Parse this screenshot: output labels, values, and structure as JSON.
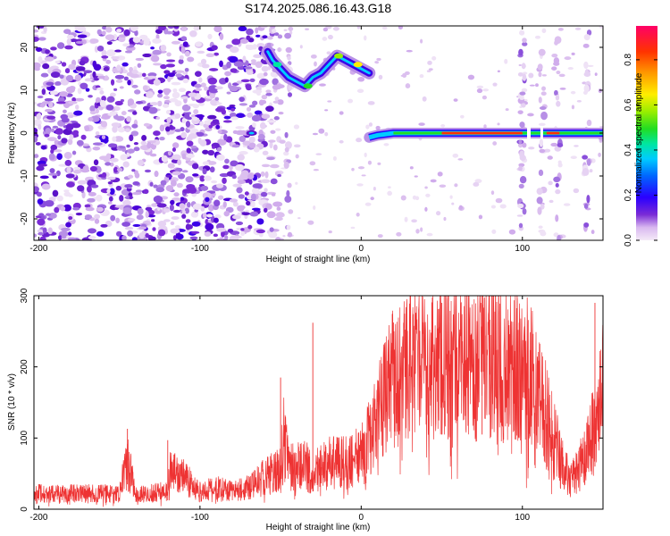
{
  "title": "S174.2025.086.16.43.G18",
  "chart_data": [
    {
      "type": "heatmap",
      "xlabel": "Height of straight line (km)",
      "ylabel": "Frequency (Hz)",
      "xlim": [
        -203,
        150
      ],
      "ylim": [
        -25,
        25
      ],
      "xticks": [
        -200,
        -100,
        0,
        100
      ],
      "yticks": [
        -20,
        -10,
        0,
        10,
        20
      ],
      "colorbar": {
        "label": "Normalized spectral amplitude",
        "ticks": [
          0.0,
          0.2,
          0.4,
          0.6,
          0.8
        ],
        "range": [
          0,
          0.95
        ],
        "colormap": [
          "#f4eaf7",
          "#d9b8f0",
          "#7a2bd6",
          "#2a00ff",
          "#0066ff",
          "#00ccff",
          "#00e6a0",
          "#22dd22",
          "#99ee00",
          "#ffee00",
          "#ff9900",
          "#ff3300",
          "#ff0066"
        ]
      },
      "features": {
        "noise_region_x": [
          -203,
          -50
        ],
        "upper_track": [
          [
            -58,
            19
          ],
          [
            -55,
            17
          ],
          [
            -50,
            15
          ],
          [
            -45,
            13
          ],
          [
            -40,
            12
          ],
          [
            -35,
            11
          ],
          [
            -30,
            13
          ],
          [
            -25,
            14
          ],
          [
            -20,
            16
          ],
          [
            -15,
            18
          ],
          [
            -10,
            17
          ],
          [
            -5,
            16
          ],
          [
            0,
            15
          ],
          [
            5,
            14
          ]
        ],
        "carrier_track": [
          [
            5,
            -1
          ],
          [
            10,
            -0.5
          ],
          [
            20,
            0
          ],
          [
            50,
            0
          ],
          [
            100,
            0
          ],
          [
            150,
            0
          ]
        ]
      }
    },
    {
      "type": "line",
      "xlabel": "Height of straight line (km)",
      "ylabel": "SNR (10 * v/v)",
      "xlim": [
        -203,
        150
      ],
      "ylim": [
        0,
        300
      ],
      "xticks": [
        -200,
        -100,
        0,
        100
      ],
      "yticks": [
        0,
        100,
        200,
        300
      ],
      "series": [
        {
          "color": "#ee3333",
          "envelope": [
            [
              -203,
              22
            ],
            [
              -150,
              22
            ],
            [
              -145,
              70
            ],
            [
              -140,
              20
            ],
            [
              -120,
              25
            ],
            [
              -118,
              60
            ],
            [
              -100,
              25
            ],
            [
              -90,
              30
            ],
            [
              -80,
              25
            ],
            [
              -70,
              30
            ],
            [
              -60,
              45
            ],
            [
              -50,
              55
            ],
            [
              -48,
              100
            ],
            [
              -45,
              60
            ],
            [
              -40,
              60
            ],
            [
              -35,
              65
            ],
            [
              -30,
              50
            ],
            [
              -20,
              65
            ],
            [
              -10,
              65
            ],
            [
              0,
              75
            ],
            [
              5,
              100
            ],
            [
              10,
              130
            ],
            [
              15,
              160
            ],
            [
              20,
              185
            ],
            [
              30,
              200
            ],
            [
              40,
              205
            ],
            [
              50,
              210
            ],
            [
              60,
              210
            ],
            [
              70,
              210
            ],
            [
              80,
              210
            ],
            [
              90,
              205
            ],
            [
              100,
              200
            ],
            [
              110,
              180
            ],
            [
              115,
              130
            ],
            [
              120,
              95
            ],
            [
              125,
              60
            ],
            [
              130,
              40
            ],
            [
              135,
              55
            ],
            [
              140,
              85
            ],
            [
              145,
              120
            ],
            [
              148,
              160
            ],
            [
              150,
              210
            ]
          ],
          "spikes": [
            [
              -145,
              113
            ],
            [
              -120,
              97
            ],
            [
              -50,
              185
            ],
            [
              -47,
              129
            ],
            [
              -30,
              262
            ],
            [
              50,
              290
            ],
            [
              75,
              300
            ],
            [
              98,
              262
            ],
            [
              145,
              290
            ]
          ]
        }
      ]
    }
  ]
}
